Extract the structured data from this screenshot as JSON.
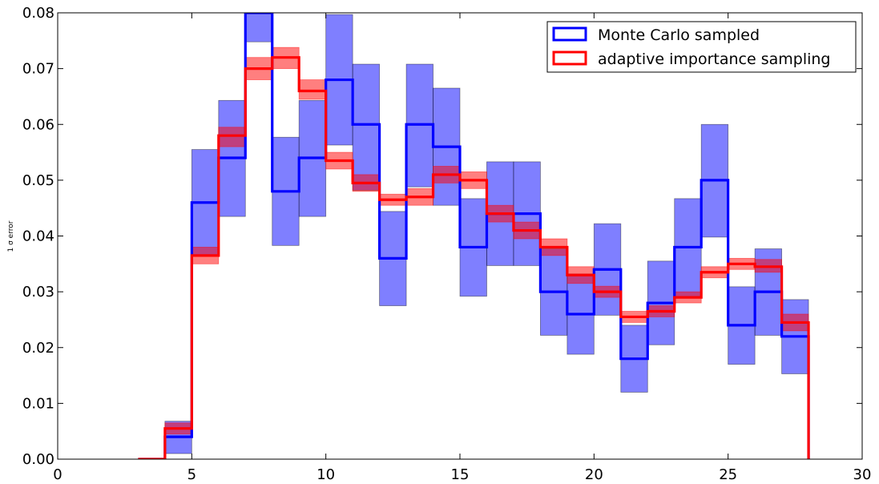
{
  "chart_data": {
    "type": "step-histogram",
    "ylabel": "1 σ error",
    "xlim": [
      0,
      30
    ],
    "ylim": [
      0,
      0.08
    ],
    "xticks": [
      0,
      5,
      10,
      15,
      20,
      25,
      30
    ],
    "yticks": [
      "0.00",
      "0.01",
      "0.02",
      "0.03",
      "0.04",
      "0.05",
      "0.06",
      "0.07",
      "0.08"
    ],
    "grid": false,
    "legend_position": "top-right",
    "bin_edges": [
      3,
      4,
      5,
      6,
      7,
      8,
      9,
      10,
      11,
      12,
      13,
      14,
      15,
      16,
      17,
      18,
      19,
      20,
      21,
      22,
      23,
      24,
      25,
      26,
      27,
      28
    ],
    "series": [
      {
        "name": "Monte Carlo sampled",
        "color": "#0000ff",
        "band_color": "#0000ff",
        "values": [
          0,
          0.004,
          0.046,
          0.054,
          0.08,
          0.048,
          0.054,
          0.068,
          0.06,
          0.036,
          0.06,
          0.056,
          0.038,
          0.044,
          0.044,
          0.03,
          0.026,
          0.034,
          0.018,
          0.028,
          0.038,
          0.05,
          0.024,
          0.03,
          0.022
        ],
        "lower": [
          0,
          0.001,
          0.0365,
          0.0435,
          0.0748,
          0.0383,
          0.0435,
          0.0563,
          0.0482,
          0.0275,
          0.0488,
          0.0455,
          0.0292,
          0.0347,
          0.0347,
          0.0222,
          0.0188,
          0.0258,
          0.012,
          0.0205,
          0.029,
          0.0398,
          0.017,
          0.0222,
          0.0153
        ],
        "upper": [
          0,
          0.0068,
          0.0555,
          0.0643,
          0.0852,
          0.0577,
          0.0643,
          0.0797,
          0.0708,
          0.0444,
          0.0708,
          0.0665,
          0.0467,
          0.0533,
          0.0533,
          0.0377,
          0.0332,
          0.0422,
          0.024,
          0.0355,
          0.0467,
          0.06,
          0.0309,
          0.0377,
          0.0286
        ]
      },
      {
        "name": "adaptive importance sampling",
        "color": "#ff0000",
        "band_color": "#ff0000",
        "values": [
          0,
          0.0055,
          0.0365,
          0.058,
          0.07,
          0.072,
          0.066,
          0.0535,
          0.0495,
          0.0465,
          0.047,
          0.051,
          0.05,
          0.044,
          0.041,
          0.038,
          0.033,
          0.03,
          0.0255,
          0.0265,
          0.029,
          0.0335,
          0.035,
          0.0345,
          0.0245
        ],
        "lower": [
          0,
          0.0045,
          0.035,
          0.056,
          0.068,
          0.07,
          0.0645,
          0.052,
          0.048,
          0.0455,
          0.0455,
          0.0495,
          0.0485,
          0.0425,
          0.0395,
          0.0365,
          0.0315,
          0.029,
          0.0245,
          0.0255,
          0.028,
          0.0325,
          0.034,
          0.0335,
          0.023
        ],
        "upper": [
          0,
          0.0065,
          0.038,
          0.0595,
          0.072,
          0.0738,
          0.068,
          0.055,
          0.051,
          0.0475,
          0.0485,
          0.0525,
          0.0515,
          0.0455,
          0.0425,
          0.0395,
          0.0345,
          0.031,
          0.0265,
          0.0275,
          0.03,
          0.0345,
          0.036,
          0.0358,
          0.026
        ]
      }
    ]
  }
}
